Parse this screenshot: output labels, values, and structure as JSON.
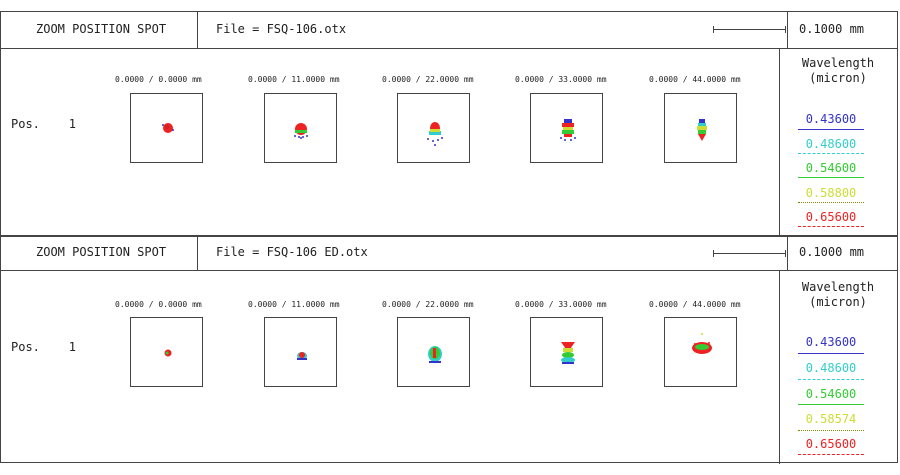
{
  "panels": [
    {
      "title": "ZOOM POSITION SPOT",
      "file": "File = FSQ-106.otx",
      "scale": "0.1000 mm",
      "position": "Pos.    1",
      "fields": [
        "0.0000 /    0.0000 mm",
        "0.0000 /   11.0000 mm",
        "0.0000 /   22.0000 mm",
        "0.0000 /   33.0000 mm",
        "0.0000 /   44.0000 mm"
      ],
      "wavelength_title": "Wavelength",
      "wavelength_unit": "(micron)",
      "wavelengths": [
        "0.43600",
        "0.48600",
        "0.54600",
        "0.58800",
        "0.65600"
      ]
    },
    {
      "title": "ZOOM POSITION SPOT",
      "file": "File = FSQ-106 ED.otx",
      "scale": "0.1000 mm",
      "position": "Pos.    1",
      "fields": [
        "0.0000 /    0.0000 mm",
        "0.0000 /   11.0000 mm",
        "0.0000 /   22.0000 mm",
        "0.0000 /   33.0000 mm",
        "0.0000 /   44.0000 mm"
      ],
      "wavelength_title": "Wavelength",
      "wavelength_unit": "(micron)",
      "wavelengths": [
        "0.43600",
        "0.48600",
        "0.54600",
        "0.58574",
        "0.65600"
      ]
    }
  ],
  "colors": {
    "wl_436": "#3333cc",
    "wl_486": "#33cccc",
    "wl_546": "#33cc33",
    "wl_588": "#ccdd33",
    "wl_656": "#ee2222"
  }
}
